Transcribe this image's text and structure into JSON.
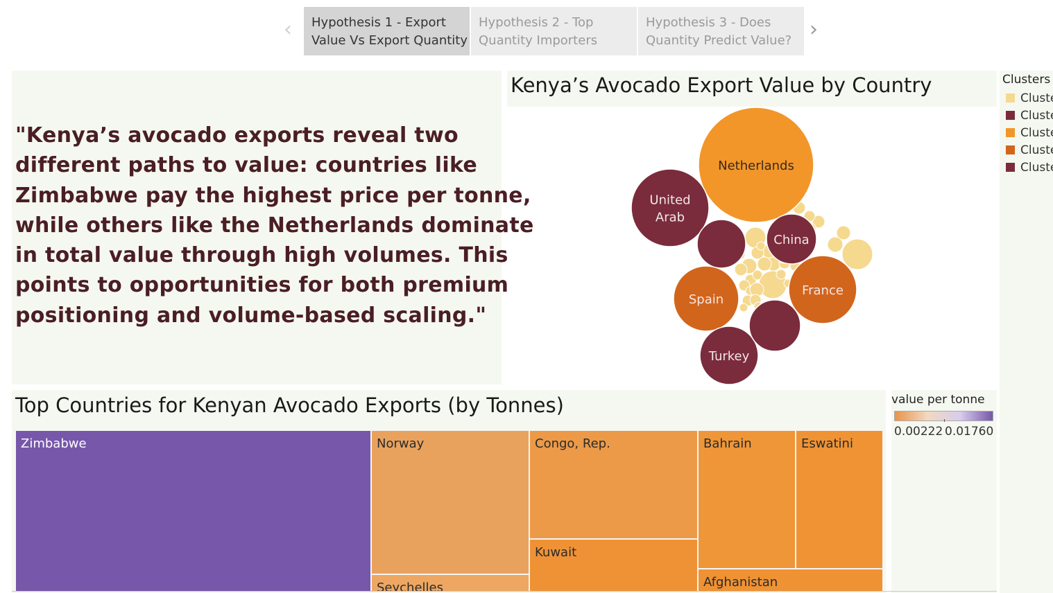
{
  "story_nav": {
    "tabs": [
      {
        "line1": "Hypothesis 1 - Export",
        "line2": "Value Vs Export Quantity",
        "active": true
      },
      {
        "line1": "Hypothesis 2 - Top",
        "line2": "Quantity Importers",
        "active": false
      },
      {
        "line1": "Hypothesis 3 - Does",
        "line2": "Quantity Predict Value?",
        "active": false
      }
    ],
    "prev_icon": "chevron-left-icon",
    "next_icon": "chevron-right-icon"
  },
  "quote": {
    "lines": [
      "\"Kenya’s avocado exports reveal two",
      "different paths to value: countries like",
      "Zimbabwe pay the highest price per tonne,",
      "while others like the Netherlands dominate",
      "in total value through high volumes. This",
      "points to opportunities for both premium",
      "positioning and volume-based scaling.\""
    ]
  },
  "colors": {
    "panel_bg": "#f5f8f0",
    "quote_text": "#4a1e25",
    "cluster_light": "#f5d98f",
    "cluster_maroon": "#7a2c3c",
    "cluster_orange": "#f2962a",
    "cluster_dark_orange": "#d2651c",
    "purple": "#7757aa"
  },
  "legend": {
    "title": "Clusters",
    "items": [
      {
        "label": "Cluste",
        "color": "#f5d98f"
      },
      {
        "label": "Cluste",
        "color": "#7a2c3c"
      },
      {
        "label": "Cluste",
        "color": "#f2962a"
      },
      {
        "label": "Cluste",
        "color": "#d2651c"
      },
      {
        "label": "Cluste",
        "color": "#7a2c3c"
      }
    ]
  },
  "value_per_tonne": {
    "title": "value per tonne",
    "min_label": "0.00222",
    "max_label": "0.01760",
    "gradient": [
      "#e8944a",
      "#f2d8c0",
      "#d8cdec",
      "#7757aa"
    ]
  },
  "chart_data": [
    {
      "type": "bubble",
      "title": "Kenya’s Avocado Export Value by Country",
      "bubbles": [
        {
          "label": "Netherlands",
          "cluster": 3,
          "color": "#f2962a",
          "relative_size": 1.0
        },
        {
          "label": "United Arab",
          "cluster": 2,
          "color": "#7a2c3c",
          "relative_size": 0.45
        },
        {
          "label": "China",
          "cluster": 2,
          "color": "#7a2c3c",
          "relative_size": 0.19
        },
        {
          "label": "France",
          "cluster": 4,
          "color": "#d2651c",
          "relative_size": 0.34
        },
        {
          "label": "Spain",
          "cluster": 4,
          "color": "#d2651c",
          "relative_size": 0.31
        },
        {
          "label": "Turkey",
          "cluster": 5,
          "color": "#7a2c3c",
          "relative_size": 0.25
        },
        {
          "label": "",
          "cluster": 2,
          "color": "#7a2c3c",
          "relative_size": 0.18
        },
        {
          "label": "",
          "cluster": 5,
          "color": "#7a2c3c",
          "relative_size": 0.2
        }
      ]
    },
    {
      "type": "treemap",
      "title": "Top Countries for Kenyan Avocado Exports (by Tonnes)",
      "color_measure": "value per tonne",
      "cells": [
        {
          "label": "Zimbabwe",
          "color": "#7757aa",
          "light_text": true
        },
        {
          "label": "Norway",
          "color": "#e9a25e",
          "light_text": false
        },
        {
          "label": "Seychelles",
          "color": "#eda762",
          "light_text": false
        },
        {
          "label": "Congo, Rep.",
          "color": "#ec9a48",
          "light_text": false
        },
        {
          "label": "Kuwait",
          "color": "#ef9236",
          "light_text": false
        },
        {
          "label": "Bahrain",
          "color": "#ee9638",
          "light_text": false
        },
        {
          "label": "Eswatini",
          "color": "#ef9335",
          "light_text": false
        },
        {
          "label": "Afghanistan",
          "color": "#ef9234",
          "light_text": false
        }
      ]
    }
  ]
}
